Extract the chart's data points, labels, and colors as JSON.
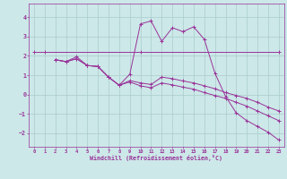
{
  "background_color": "#cce8e8",
  "grid_color": "#aacccc",
  "line_color": "#993399",
  "xlabel": "Windchill (Refroidissement éolien,°C)",
  "xlim": [
    -0.5,
    23.5
  ],
  "ylim": [
    -2.7,
    4.7
  ],
  "yticks": [
    -2,
    -1,
    0,
    1,
    2,
    3,
    4
  ],
  "xticks": [
    0,
    1,
    2,
    3,
    4,
    5,
    6,
    7,
    8,
    9,
    10,
    11,
    12,
    13,
    14,
    15,
    16,
    17,
    18,
    19,
    20,
    21,
    22,
    23
  ],
  "series": [
    {
      "x": [
        0,
        1,
        10,
        23
      ],
      "y": [
        2.2,
        2.2,
        2.2,
        2.2
      ]
    },
    {
      "x": [
        2,
        3,
        4,
        5,
        6,
        7,
        8,
        9,
        10,
        11,
        12,
        13,
        14,
        15,
        16,
        17,
        18,
        19,
        20,
        21,
        22,
        23
      ],
      "y": [
        1.8,
        1.7,
        1.85,
        1.5,
        1.45,
        0.9,
        0.48,
        0.72,
        0.6,
        0.52,
        0.9,
        0.82,
        0.7,
        0.6,
        0.45,
        0.3,
        0.1,
        -0.05,
        -0.2,
        -0.4,
        -0.65,
        -0.85
      ]
    },
    {
      "x": [
        2,
        3,
        4,
        5,
        6,
        7,
        8,
        9,
        10,
        11,
        12,
        13,
        14,
        15,
        16,
        17,
        18,
        19,
        20,
        21,
        22,
        23
      ],
      "y": [
        1.8,
        1.7,
        1.85,
        1.5,
        1.45,
        0.9,
        0.48,
        0.65,
        0.45,
        0.35,
        0.6,
        0.5,
        0.38,
        0.28,
        0.1,
        -0.05,
        -0.2,
        -0.4,
        -0.6,
        -0.85,
        -1.1,
        -1.35
      ]
    },
    {
      "x": [
        2,
        3,
        4,
        5,
        6,
        7,
        8,
        9,
        10,
        11,
        12,
        13,
        14,
        15,
        16,
        17,
        18,
        19,
        20,
        21,
        22,
        23
      ],
      "y": [
        1.8,
        1.7,
        1.95,
        1.5,
        1.45,
        0.9,
        0.48,
        1.05,
        3.65,
        3.8,
        2.75,
        3.45,
        3.25,
        3.5,
        2.85,
        1.1,
        -0.1,
        -0.95,
        -1.35,
        -1.65,
        -1.95,
        -2.35
      ]
    }
  ]
}
